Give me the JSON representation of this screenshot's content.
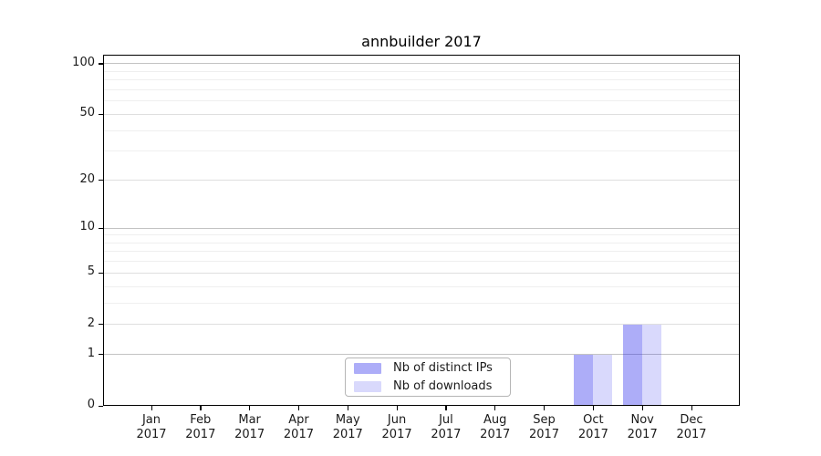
{
  "title": "annbuilder 2017",
  "colors": {
    "bar_distinct_ips": "rgba(20,20,235,0.35)",
    "bar_downloads": "rgba(20,20,235,0.16)",
    "grid_major": "#c3c3c3",
    "grid_mid": "#dfdfdf",
    "grid_minor": "#efefef",
    "axis": "#000000",
    "text": "#1a1a1a",
    "legend_border": "#b5b5b5"
  },
  "chart_data": {
    "type": "bar",
    "title": "annbuilder 2017",
    "categories": [
      "Jan",
      "Feb",
      "Mar",
      "Apr",
      "May",
      "Jun",
      "Jul",
      "Aug",
      "Sep",
      "Oct",
      "Nov",
      "Dec"
    ],
    "year": "2017",
    "series": [
      {
        "name": "Nb of distinct IPs",
        "color": "rgba(20,20,235,0.35)",
        "values": [
          0,
          0,
          0,
          0,
          0,
          0,
          0,
          0,
          0,
          1,
          2,
          0
        ]
      },
      {
        "name": "Nb of downloads",
        "color": "rgba(20,20,235,0.16)",
        "values": [
          0,
          0,
          0,
          0,
          0,
          0,
          0,
          0,
          0,
          1,
          2,
          0
        ]
      }
    ],
    "yscale": "log1p",
    "ylim": [
      0,
      113
    ],
    "y_ticks": [
      0,
      1,
      2,
      5,
      10,
      20,
      50,
      100
    ],
    "y_major_gridlines": [
      1,
      10,
      100
    ],
    "y_minor_gridlines": [
      3,
      4,
      6,
      7,
      8,
      9,
      30,
      40,
      60,
      70,
      80,
      90
    ],
    "xlabel": "",
    "ylabel": "",
    "grid": "on",
    "legend_position": "lower center"
  },
  "legend": {
    "items": [
      {
        "label": "Nb of distinct IPs"
      },
      {
        "label": "Nb of downloads"
      }
    ]
  }
}
